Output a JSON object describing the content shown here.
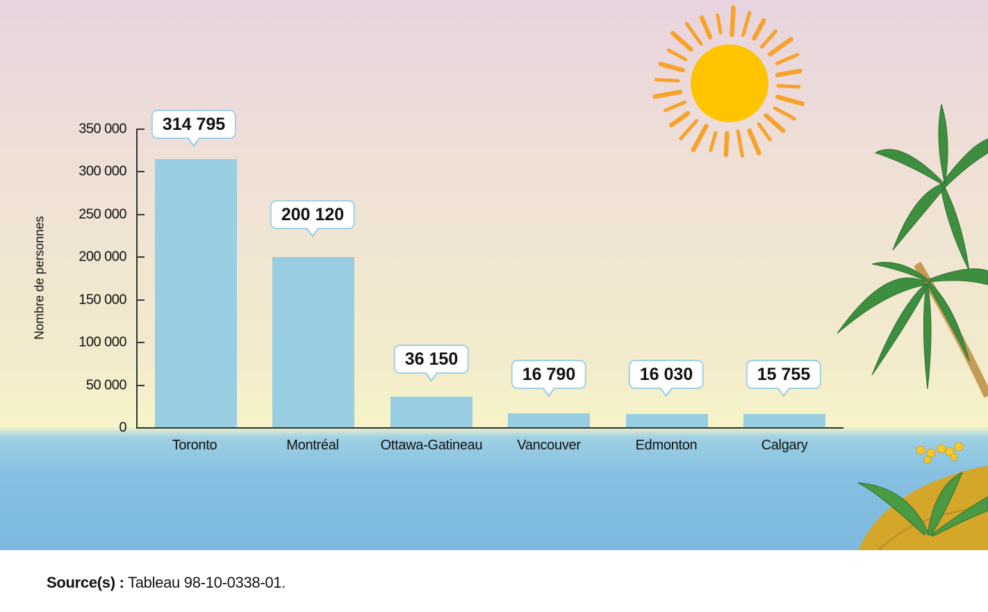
{
  "chart_data": {
    "type": "bar",
    "title": "",
    "xlabel": "",
    "ylabel": "Nombre de personnes",
    "ylim": [
      0,
      350000
    ],
    "yticks": [
      0,
      50000,
      100000,
      150000,
      200000,
      250000,
      300000,
      350000
    ],
    "ytick_labels": [
      "0",
      "50 000",
      "100 000",
      "150 000",
      "200 000",
      "250 000",
      "300 000",
      "350 000"
    ],
    "categories": [
      "Toronto",
      "Montréal",
      "Ottawa-Gatineau",
      "Vancouver",
      "Edmonton",
      "Calgary"
    ],
    "values": [
      314795,
      200120,
      36150,
      16790,
      16030,
      15755
    ],
    "value_labels": [
      "314 795",
      "200 120",
      "36 150",
      "16 790",
      "16 030",
      "15 755"
    ],
    "bar_color": "#98cde2",
    "grid": false,
    "legend": null
  },
  "axis": {
    "ylabel": "Nombre de personnes",
    "ticks": [
      "0",
      "50 000",
      "100 000",
      "150 000",
      "200 000",
      "250 000",
      "300 000",
      "350 000"
    ]
  },
  "bars": [
    {
      "label": "Toronto",
      "value_label": "314 795"
    },
    {
      "label": "Montréal",
      "value_label": "200 120"
    },
    {
      "label": "Ottawa-Gatineau",
      "value_label": "36 150"
    },
    {
      "label": "Vancouver",
      "value_label": "16 790"
    },
    {
      "label": "Edmonton",
      "value_label": "16 030"
    },
    {
      "label": "Calgary",
      "value_label": "15 755"
    }
  ],
  "footer": {
    "source_label": "Source(s) :",
    "source_text": " Tableau 98-10-0338-01."
  },
  "decor": {
    "sun_color": "#ffc400",
    "ray_color": "#f7a32a",
    "palm_color": "#3e8e3f",
    "sand_color": "#d4a62a"
  }
}
